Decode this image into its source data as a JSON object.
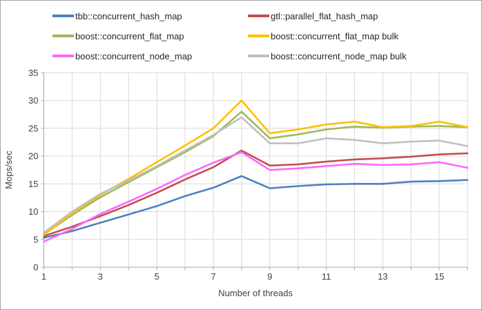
{
  "chart_data": {
    "type": "line",
    "title": "",
    "xlabel": "Number of threads",
    "ylabel": "Mops/sec",
    "x": [
      1,
      2,
      3,
      4,
      5,
      6,
      7,
      8,
      9,
      10,
      11,
      12,
      13,
      14,
      15,
      16
    ],
    "x_tick_labels": [
      "1",
      "3",
      "5",
      "7",
      "9",
      "11",
      "13",
      "15"
    ],
    "x_label_positions": [
      1,
      3,
      5,
      7,
      9,
      11,
      13,
      15
    ],
    "y_ticks": [
      0,
      5,
      10,
      15,
      20,
      25,
      30,
      35
    ],
    "ylim": [
      0,
      35
    ],
    "grid": true,
    "legend_position": "top",
    "series": [
      {
        "name": "tbb::concurrent_hash_map",
        "color": "#4F81BD",
        "values": [
          5.3,
          6.5,
          8.0,
          9.5,
          11.0,
          12.8,
          14.3,
          16.4,
          14.2,
          14.6,
          14.9,
          15.0,
          15.0,
          15.4,
          15.5,
          15.7
        ]
      },
      {
        "name": "gtl::parallel_flat_hash_map",
        "color": "#C0504D",
        "values": [
          5.6,
          7.3,
          9.2,
          11.2,
          13.4,
          15.8,
          18.0,
          21.0,
          18.3,
          18.5,
          19.0,
          19.4,
          19.6,
          19.9,
          20.3,
          20.5
        ]
      },
      {
        "name": "boost::concurrent_flat_map",
        "color": "#9BBB59",
        "values": [
          5.9,
          9.4,
          12.6,
          15.3,
          18.0,
          20.7,
          23.6,
          28.0,
          23.2,
          23.9,
          24.8,
          25.3,
          25.1,
          25.3,
          25.4,
          25.2
        ]
      },
      {
        "name": "boost::concurrent_flat_map bulk",
        "color": "#FFC000",
        "values": [
          5.8,
          9.7,
          13.0,
          15.9,
          18.9,
          21.9,
          25.0,
          30.0,
          24.1,
          24.8,
          25.7,
          26.2,
          25.2,
          25.4,
          26.2,
          25.2
        ]
      },
      {
        "name": "boost::concurrent_node_map",
        "color": "#FF66FF",
        "values": [
          4.6,
          6.9,
          9.6,
          11.8,
          14.1,
          16.6,
          18.8,
          20.7,
          17.5,
          17.8,
          18.2,
          18.6,
          18.4,
          18.5,
          18.9,
          17.9
        ]
      },
      {
        "name": "boost::concurrent_node_map bulk",
        "color": "#BFBFBF",
        "values": [
          6.2,
          10.0,
          13.2,
          15.6,
          18.2,
          21.0,
          23.8,
          27.0,
          22.3,
          22.3,
          23.2,
          22.9,
          22.3,
          22.6,
          22.8,
          21.8
        ]
      }
    ]
  },
  "colors": {
    "background": "#FFFFFF",
    "border": "#A6A6A6",
    "gridline": "#D9D9D9",
    "axis": "#A6A6A6",
    "text": "#404040"
  }
}
